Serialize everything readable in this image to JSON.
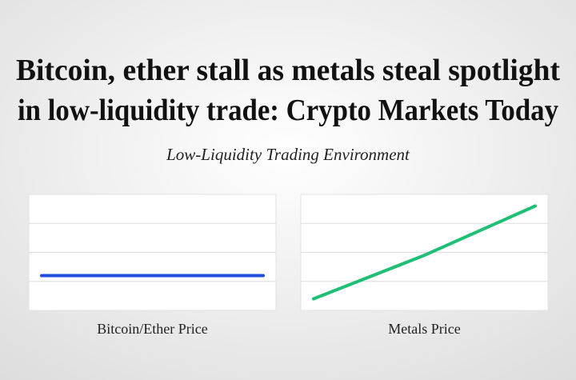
{
  "header": {
    "title_lines": [
      "Bitcoin, ether stall as metals steal spotlight",
      "in low-liquidity trade: Crypto Markets Today"
    ],
    "subtitle": "Low-Liquidity Trading Environment"
  },
  "chart_data": [
    {
      "type": "line",
      "title": "Bitcoin/Ether Price",
      "categories": [
        null,
        null
      ],
      "values": [
        1.2,
        1.2
      ],
      "color": "#1f4fd8",
      "ylim": [
        0,
        4
      ],
      "yticks": [
        1,
        2,
        3
      ],
      "grid": true
    },
    {
      "type": "line",
      "title": "Metals Price",
      "categories": [
        null,
        null,
        null
      ],
      "values": [
        0.4,
        1.9,
        3.6
      ],
      "color": "#1fbf75",
      "ylim": [
        0,
        4
      ],
      "yticks": [
        1,
        2,
        3
      ],
      "grid": true
    }
  ]
}
